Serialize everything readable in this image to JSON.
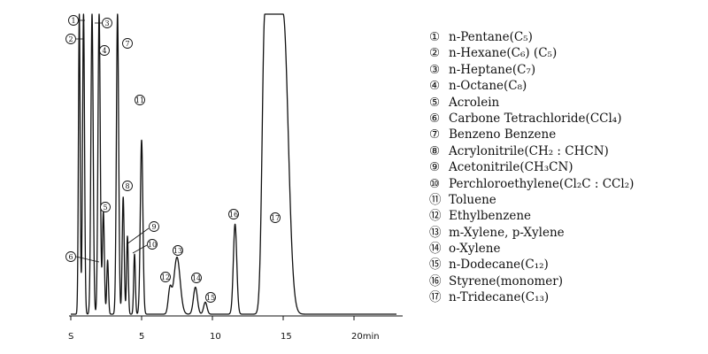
{
  "chart_data": {
    "type": "line",
    "xlabel": "",
    "ylabel": "",
    "x_unit": "min",
    "xlim": [
      0,
      24
    ],
    "ylim": [
      0,
      100
    ],
    "grid": false,
    "x_ticks": [
      {
        "value": 0,
        "label": "S"
      },
      {
        "value": 5,
        "label": "5"
      },
      {
        "value": 10,
        "label": "10"
      },
      {
        "value": 15,
        "label": "15"
      },
      {
        "value": 20,
        "label": "20min"
      }
    ],
    "peaks": [
      {
        "id": "1",
        "rt": 0.6,
        "height": 100,
        "width": 0.06
      },
      {
        "id": "2",
        "rt": 0.9,
        "height": 100,
        "width": 0.07
      },
      {
        "id": "3",
        "rt": 1.5,
        "height": 100,
        "width": 0.08
      },
      {
        "id": "4",
        "rt": 2.0,
        "height": 100,
        "width": 0.08
      },
      {
        "id": "5",
        "rt": 2.3,
        "height": 34,
        "width": 0.07
      },
      {
        "id": "6",
        "rt": 2.6,
        "height": 18,
        "width": 0.06
      },
      {
        "id": "7",
        "rt": 3.3,
        "height": 100,
        "width": 0.08
      },
      {
        "id": "8",
        "rt": 3.7,
        "height": 39,
        "width": 0.07
      },
      {
        "id": "9",
        "rt": 4.0,
        "height": 26,
        "width": 0.06
      },
      {
        "id": "10",
        "rt": 4.5,
        "height": 20,
        "width": 0.06
      },
      {
        "id": "11",
        "rt": 5.0,
        "height": 58,
        "width": 0.09
      },
      {
        "id": "12",
        "rt": 7.0,
        "height": 8,
        "width": 0.12
      },
      {
        "id": "13",
        "rt": 7.5,
        "height": 19,
        "width": 0.22
      },
      {
        "id": "14",
        "rt": 8.8,
        "height": 9,
        "width": 0.14
      },
      {
        "id": "15",
        "rt": 9.5,
        "height": 4,
        "width": 0.12
      },
      {
        "id": "16",
        "rt": 11.6,
        "height": 30,
        "width": 0.12
      },
      {
        "id": "17",
        "rt": 14.0,
        "height": 100,
        "width": 0.45,
        "flat_top_start": 13.7,
        "flat_top_end": 15.0,
        "tail": 1.0
      }
    ],
    "legend": [
      {
        "num": "①",
        "name": "n-Pentane(C₅)"
      },
      {
        "num": "②",
        "name": "n-Hexane(C₆) (C₅)"
      },
      {
        "num": "③",
        "name": "n-Heptane(C₇)"
      },
      {
        "num": "④",
        "name": "n-Octane(C₈)"
      },
      {
        "num": "⑤",
        "name": "Acrolein"
      },
      {
        "num": "⑥",
        "name": "Carbone Tetrachloride(CCl₄)"
      },
      {
        "num": "⑦",
        "name": "Benzeno Benzene"
      },
      {
        "num": "⑧",
        "name": "Acrylonitrile(CH₂ : CHCN)"
      },
      {
        "num": "⑨",
        "name": "Acetonitrile(CH₃CN)"
      },
      {
        "num": "⑩",
        "name": "Perchloroethylene(Cl₂C : CCl₂)"
      },
      {
        "num": "⑪",
        "name": "Toluene"
      },
      {
        "num": "⑫",
        "name": "Ethylbenzene"
      },
      {
        "num": "⑬",
        "name": "m-Xylene, p-Xylene"
      },
      {
        "num": "⑭",
        "name": "o-Xylene"
      },
      {
        "num": "⑮",
        "name": "n-Dodecane(C₁₂)"
      },
      {
        "num": "⑯",
        "name": "Styrene(monomer)"
      },
      {
        "num": "⑰",
        "name": "n-Tridecane(C₁₃)"
      }
    ]
  }
}
